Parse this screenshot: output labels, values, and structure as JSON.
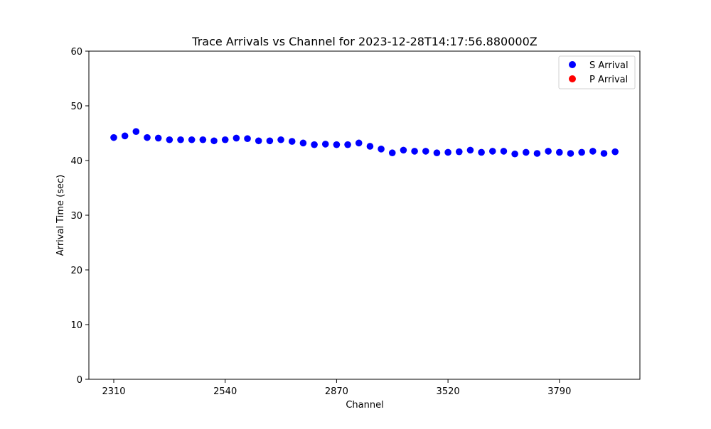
{
  "chart_data": {
    "type": "scatter",
    "title": "Trace Arrivals vs Channel for 2023-12-28T14:17:56.880000Z",
    "xlabel": "Channel",
    "ylabel": "Arrival Time (sec)",
    "ylim": [
      0,
      60
    ],
    "y_ticks": [
      "0",
      "10",
      "20",
      "30",
      "40",
      "50",
      "60"
    ],
    "x_ticks": [
      "2310",
      "2540",
      "2870",
      "3520",
      "3790"
    ],
    "grid": false,
    "legend_position": "top-right",
    "series": [
      {
        "name": "S Arrival",
        "color": "#0000ff",
        "marker": "circle",
        "values": [
          44.2,
          44.5,
          45.3,
          44.2,
          44.1,
          43.8,
          43.8,
          43.8,
          43.8,
          43.6,
          43.8,
          44.1,
          44.0,
          43.6,
          43.6,
          43.8,
          43.5,
          43.2,
          42.9,
          43.0,
          42.9,
          42.9,
          43.2,
          42.6,
          42.1,
          41.4,
          41.9,
          41.7,
          41.7,
          41.4,
          41.5,
          41.6,
          41.9,
          41.5,
          41.7,
          41.7,
          41.2,
          41.5,
          41.3,
          41.7,
          41.5,
          41.3,
          41.5,
          41.7,
          41.3,
          41.6
        ]
      },
      {
        "name": "P Arrival",
        "color": "#ff0000",
        "marker": "circle",
        "values": []
      }
    ]
  }
}
